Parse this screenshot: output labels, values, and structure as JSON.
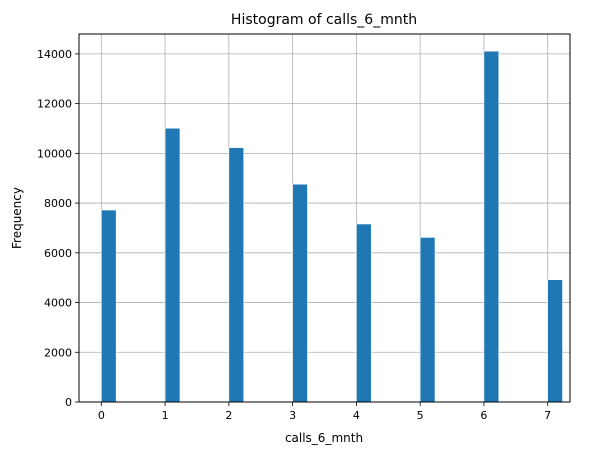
{
  "chart_data": {
    "type": "bar",
    "title": "Histogram of calls_6_mnth",
    "xlabel": "calls_6_mnth",
    "ylabel": "Frequency",
    "x": [
      0,
      1,
      2,
      3,
      4,
      5,
      6,
      7
    ],
    "values": [
      7720,
      11010,
      10230,
      8760,
      7160,
      6620,
      14110,
      4920
    ],
    "xlim": [
      -0.35,
      7.35
    ],
    "ylim": [
      0,
      14800
    ],
    "xticks": [
      0,
      1,
      2,
      3,
      4,
      5,
      6,
      7
    ],
    "yticks": [
      0,
      2000,
      4000,
      6000,
      8000,
      10000,
      12000,
      14000
    ],
    "bin_width": 0.2333,
    "grid": true,
    "colors": {
      "bar": "#1f77b4",
      "bar_edge": "#ffffff",
      "grid": "#b0b0b0"
    }
  }
}
